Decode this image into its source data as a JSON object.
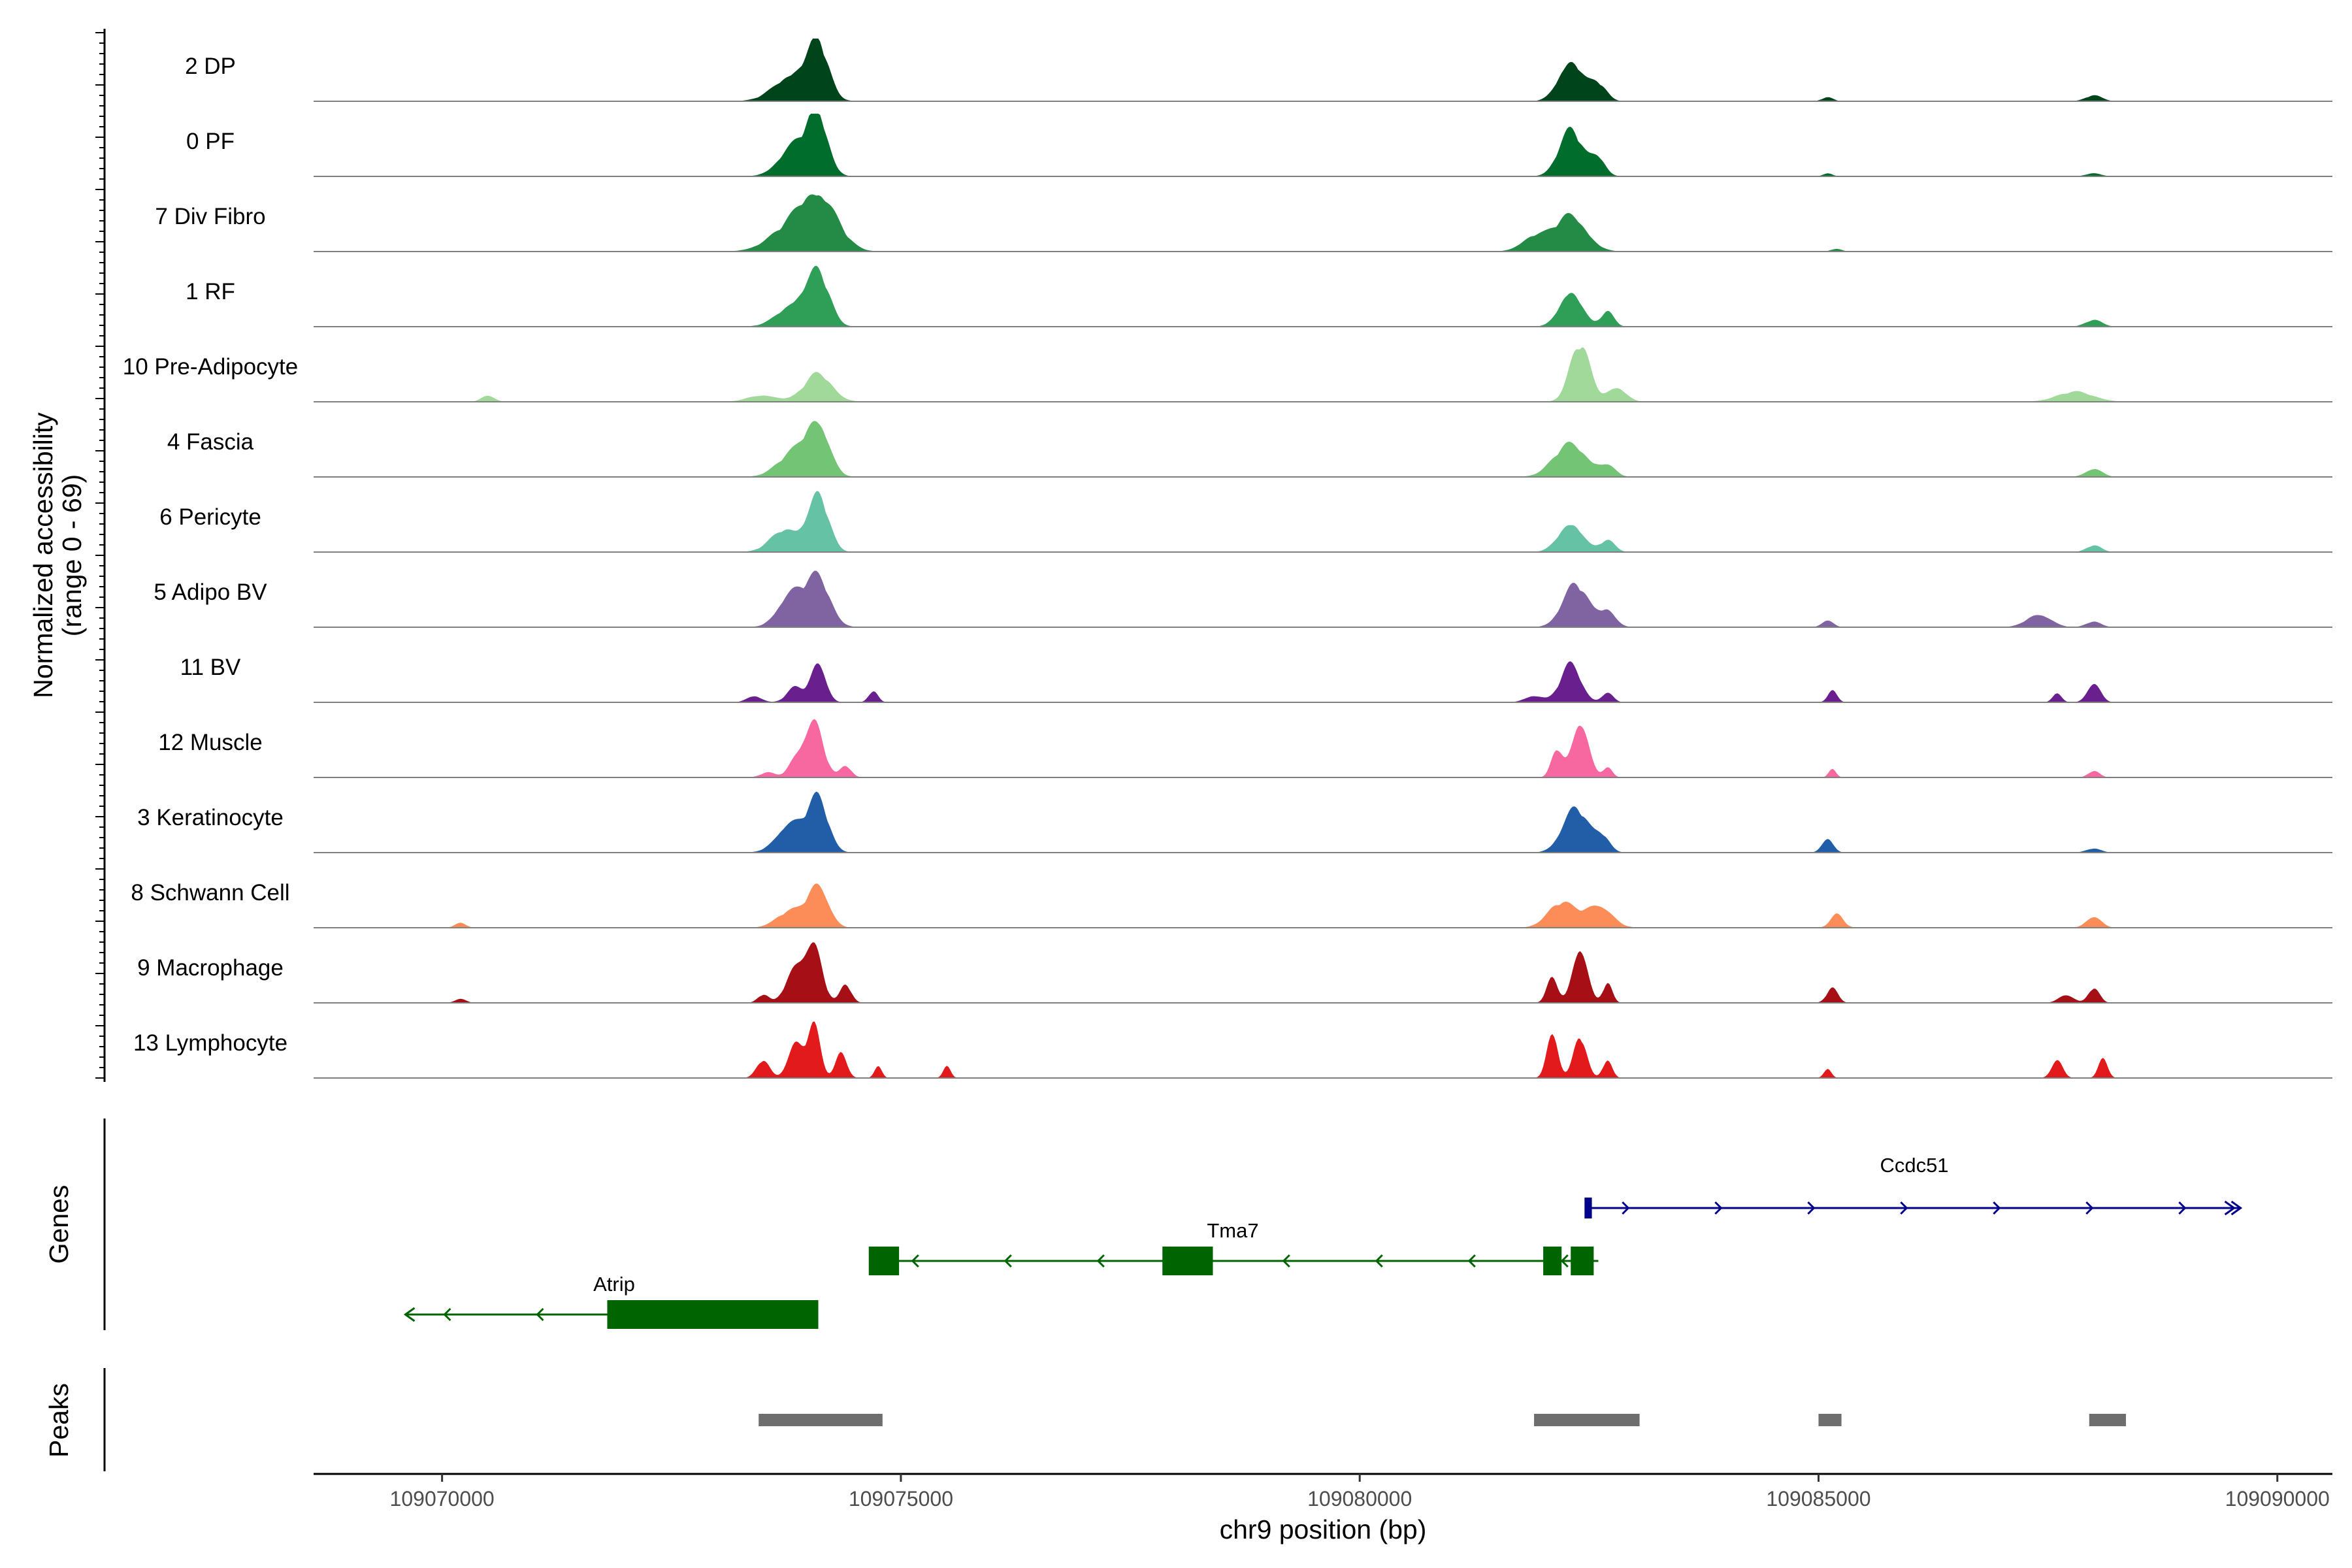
{
  "chart_data": {
    "type": "area",
    "title": "",
    "ylabel_line1": "Normalized accessibility",
    "ylabel_line2": "(range 0 - 69)",
    "y_range": [
      0,
      69
    ],
    "xlabel": "chr9 position (bp)",
    "xlim": [
      109068600,
      109090600
    ],
    "x_ticks": [
      109070000,
      109075000,
      109080000,
      109085000,
      109090000
    ],
    "x_tick_labels": [
      "109070000",
      "109075000",
      "109080000",
      "109085000",
      "109090000"
    ],
    "peak_centers": [
      109074050,
      109082350
    ],
    "tracks": [
      {
        "label": "2 DP",
        "color": "#00441b",
        "peaks": [
          [
            109073850,
            34,
            210
          ],
          [
            109074100,
            58,
            110
          ],
          [
            109082300,
            50,
            130
          ],
          [
            109082600,
            20,
            90
          ],
          [
            109085100,
            5,
            60
          ],
          [
            109088000,
            7,
            90
          ]
        ]
      },
      {
        "label": "0 PF",
        "color": "#006d2c",
        "peaks": [
          [
            109073850,
            38,
            170
          ],
          [
            109074100,
            66,
            110
          ],
          [
            109082300,
            56,
            130
          ],
          [
            109082600,
            22,
            80
          ],
          [
            109085100,
            4,
            50
          ],
          [
            109088000,
            4,
            80
          ]
        ]
      },
      {
        "label": "7 Div Fibro",
        "color": "#238b45",
        "peaks": [
          [
            109073750,
            22,
            220
          ],
          [
            109074100,
            68,
            200
          ],
          [
            109081900,
            18,
            140
          ],
          [
            109082300,
            44,
            170
          ],
          [
            109085200,
            3,
            60
          ]
        ]
      },
      {
        "label": "1 RF",
        "color": "#2f9e57",
        "peaks": [
          [
            109073850,
            28,
            180
          ],
          [
            109074100,
            58,
            120
          ],
          [
            109082300,
            44,
            120
          ],
          [
            109082700,
            18,
            70
          ],
          [
            109088000,
            8,
            90
          ]
        ]
      },
      {
        "label": "10 Pre-Adipocyte",
        "color": "#a1d99b",
        "peaks": [
          [
            109070500,
            8,
            70
          ],
          [
            109073500,
            8,
            160
          ],
          [
            109074100,
            34,
            150
          ],
          [
            109082400,
            69,
            110
          ],
          [
            109082800,
            18,
            100
          ],
          [
            109087800,
            12,
            200
          ]
        ]
      },
      {
        "label": "4 Fascia",
        "color": "#74c476",
        "peaks": [
          [
            109073850,
            30,
            180
          ],
          [
            109074100,
            60,
            120
          ],
          [
            109082300,
            40,
            180
          ],
          [
            109082700,
            12,
            90
          ],
          [
            109088000,
            10,
            90
          ]
        ]
      },
      {
        "label": "6 Pericyte",
        "color": "#66c2a4",
        "peaks": [
          [
            109073750,
            28,
            160
          ],
          [
            109074100,
            68,
            110
          ],
          [
            109082300,
            36,
            130
          ],
          [
            109082700,
            14,
            80
          ],
          [
            109088000,
            8,
            80
          ]
        ]
      },
      {
        "label": "5 Adipo BV",
        "color": "#8064a2",
        "peaks": [
          [
            109073800,
            40,
            140
          ],
          [
            109074100,
            58,
            130
          ],
          [
            109082350,
            52,
            140
          ],
          [
            109082700,
            20,
            90
          ],
          [
            109085100,
            9,
            60
          ],
          [
            109087400,
            16,
            130
          ],
          [
            109088000,
            7,
            80
          ]
        ]
      },
      {
        "label": "11 BV",
        "color": "#6a1f8f",
        "peaks": [
          [
            109073400,
            8,
            80
          ],
          [
            109073850,
            18,
            90
          ],
          [
            109074100,
            50,
            80
          ],
          [
            109074700,
            14,
            50
          ],
          [
            109081900,
            8,
            100
          ],
          [
            109082300,
            46,
            110
          ],
          [
            109082700,
            12,
            60
          ],
          [
            109085150,
            14,
            50
          ],
          [
            109088000,
            24,
            70
          ],
          [
            109087600,
            10,
            50
          ]
        ]
      },
      {
        "label": "12 Muscle",
        "color": "#f768a1",
        "peaks": [
          [
            109073550,
            6,
            80
          ],
          [
            109073850,
            20,
            80
          ],
          [
            109074050,
            69,
            100
          ],
          [
            109074400,
            14,
            60
          ],
          [
            109082150,
            34,
            60
          ],
          [
            109082400,
            69,
            90
          ],
          [
            109082700,
            12,
            50
          ],
          [
            109085150,
            10,
            40
          ],
          [
            109088000,
            8,
            60
          ]
        ]
      },
      {
        "label": "3 Keratinocyte",
        "color": "#225ea8",
        "peaks": [
          [
            109073800,
            36,
            150
          ],
          [
            109074100,
            62,
            110
          ],
          [
            109082350,
            54,
            140
          ],
          [
            109082650,
            18,
            80
          ],
          [
            109085100,
            18,
            60
          ],
          [
            109088000,
            5,
            80
          ]
        ]
      },
      {
        "label": "8 Schwann Cell",
        "color": "#fc8d59",
        "peaks": [
          [
            109070200,
            6,
            60
          ],
          [
            109073800,
            20,
            150
          ],
          [
            109074100,
            52,
            110
          ],
          [
            109082200,
            30,
            150
          ],
          [
            109082600,
            28,
            140
          ],
          [
            109085200,
            16,
            70
          ],
          [
            109088000,
            14,
            80
          ]
        ]
      },
      {
        "label": "9 Macrophage",
        "color": "#a50f15",
        "peaks": [
          [
            109070200,
            5,
            60
          ],
          [
            109073500,
            10,
            60
          ],
          [
            109073850,
            42,
            100
          ],
          [
            109074050,
            69,
            90
          ],
          [
            109074400,
            22,
            60
          ],
          [
            109082100,
            30,
            60
          ],
          [
            109082400,
            69,
            80
          ],
          [
            109082700,
            24,
            50
          ],
          [
            109085150,
            18,
            60
          ],
          [
            109087700,
            10,
            80
          ],
          [
            109088000,
            18,
            60
          ]
        ]
      },
      {
        "label": "13 Lymphocyte",
        "color": "#e31a1c",
        "peaks": [
          [
            109073500,
            22,
            70
          ],
          [
            109073850,
            42,
            80
          ],
          [
            109074050,
            62,
            70
          ],
          [
            109074350,
            32,
            60
          ],
          [
            109074750,
            14,
            40
          ],
          [
            109075500,
            14,
            40
          ],
          [
            109082100,
            58,
            60
          ],
          [
            109082400,
            50,
            70
          ],
          [
            109082700,
            22,
            50
          ],
          [
            109085100,
            12,
            40
          ],
          [
            109087600,
            22,
            60
          ],
          [
            109088100,
            24,
            50
          ]
        ]
      }
    ],
    "genes_label": "Genes",
    "genes": [
      {
        "name": "Ccdc51",
        "strand": "+",
        "color": "#00008b",
        "start": 109082500,
        "end": 109089600,
        "exons": [
          [
            109082450,
            109082530
          ]
        ]
      },
      {
        "name": "Tma7",
        "strand": "-",
        "color": "#006400",
        "start": 109074700,
        "end": 109082600,
        "exons": [
          [
            109074650,
            109074980
          ],
          [
            109077850,
            109078400
          ],
          [
            109082000,
            109082200
          ],
          [
            109082300,
            109082550
          ]
        ]
      },
      {
        "name": "Atrip",
        "strand": "-",
        "color": "#006400",
        "start": 109069600,
        "end": 109074100,
        "exons": [
          [
            109071800,
            109074100
          ]
        ]
      }
    ],
    "peaks_label": "Peaks",
    "peak_regions": [
      [
        109073450,
        109074800
      ],
      [
        109081900,
        109083050
      ],
      [
        109085000,
        109085250
      ],
      [
        109087950,
        109088350
      ]
    ]
  }
}
